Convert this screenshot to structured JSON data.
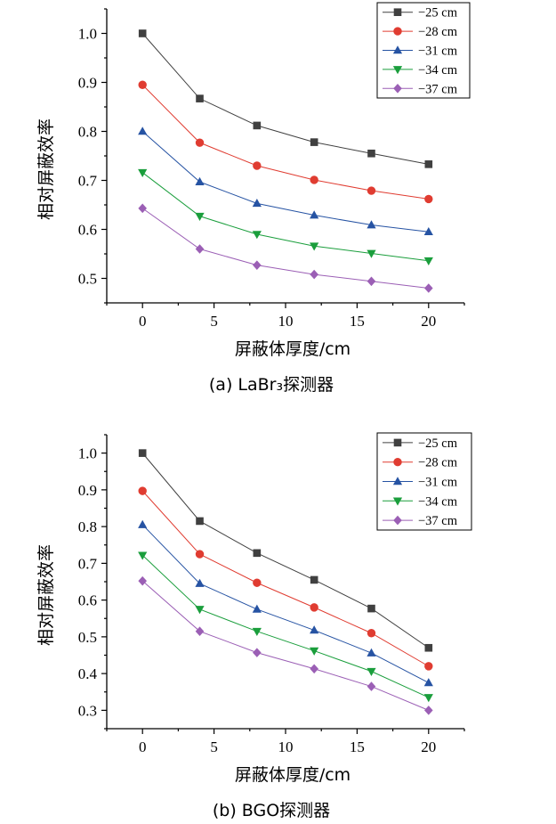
{
  "chart_data": [
    {
      "type": "line",
      "caption": "(a) LaBr₃探测器",
      "xlabel": "屏蔽体厚度/cm",
      "ylabel": "相对屏蔽效率",
      "xlim": [
        -2.5,
        22.5
      ],
      "ylim": [
        0.45,
        1.05
      ],
      "xticks": [
        0,
        5,
        10,
        15,
        20
      ],
      "yticks": [
        0.5,
        0.6,
        0.7,
        0.8,
        0.9,
        1.0
      ],
      "ytick_labels": [
        "0.5",
        "0.6",
        "0.7",
        "0.8",
        "0.9",
        "1.0"
      ],
      "legend_position": "top-right",
      "x": [
        0,
        4,
        8,
        12,
        16,
        20
      ],
      "series": [
        {
          "name": "−25 cm",
          "color": "#404040",
          "marker": "square",
          "values": [
            1.0,
            0.867,
            0.812,
            0.778,
            0.755,
            0.733
          ]
        },
        {
          "name": "−28 cm",
          "color": "#e03c31",
          "marker": "circle",
          "values": [
            0.895,
            0.777,
            0.73,
            0.701,
            0.679,
            0.662
          ]
        },
        {
          "name": "−31 cm",
          "color": "#2653a3",
          "marker": "triangle-up",
          "values": [
            0.8,
            0.697,
            0.653,
            0.629,
            0.609,
            0.595
          ]
        },
        {
          "name": "−34 cm",
          "color": "#1a9e3c",
          "marker": "triangle-down",
          "values": [
            0.716,
            0.627,
            0.59,
            0.566,
            0.551,
            0.536
          ]
        },
        {
          "name": "−37 cm",
          "color": "#9b5fb5",
          "marker": "diamond",
          "values": [
            0.643,
            0.56,
            0.527,
            0.508,
            0.494,
            0.48
          ]
        }
      ]
    },
    {
      "type": "line",
      "caption": "(b) BGO探测器",
      "xlabel": "屏蔽体厚度/cm",
      "ylabel": "相对屏蔽效率",
      "xlim": [
        -2.5,
        22.5
      ],
      "ylim": [
        0.25,
        1.05
      ],
      "xticks": [
        0,
        5,
        10,
        15,
        20
      ],
      "yticks": [
        0.3,
        0.4,
        0.5,
        0.6,
        0.7,
        0.8,
        0.9,
        1.0
      ],
      "ytick_labels": [
        "0.3",
        "0.4",
        "0.5",
        "0.6",
        "0.7",
        "0.8",
        "0.9",
        "1.0"
      ],
      "legend_position": "top-right",
      "x": [
        0,
        4,
        8,
        12,
        16,
        20
      ],
      "series": [
        {
          "name": "−25 cm",
          "color": "#404040",
          "marker": "square",
          "values": [
            1.0,
            0.815,
            0.728,
            0.655,
            0.577,
            0.47
          ]
        },
        {
          "name": "−28 cm",
          "color": "#e03c31",
          "marker": "circle",
          "values": [
            0.897,
            0.725,
            0.647,
            0.58,
            0.51,
            0.42
          ]
        },
        {
          "name": "−31 cm",
          "color": "#2653a3",
          "marker": "triangle-up",
          "values": [
            0.805,
            0.645,
            0.575,
            0.518,
            0.456,
            0.375
          ]
        },
        {
          "name": "−34 cm",
          "color": "#1a9e3c",
          "marker": "triangle-down",
          "values": [
            0.722,
            0.575,
            0.515,
            0.462,
            0.406,
            0.335
          ]
        },
        {
          "name": "−37 cm",
          "color": "#9b5fb5",
          "marker": "diamond",
          "values": [
            0.652,
            0.515,
            0.457,
            0.413,
            0.365,
            0.3
          ]
        }
      ]
    }
  ]
}
